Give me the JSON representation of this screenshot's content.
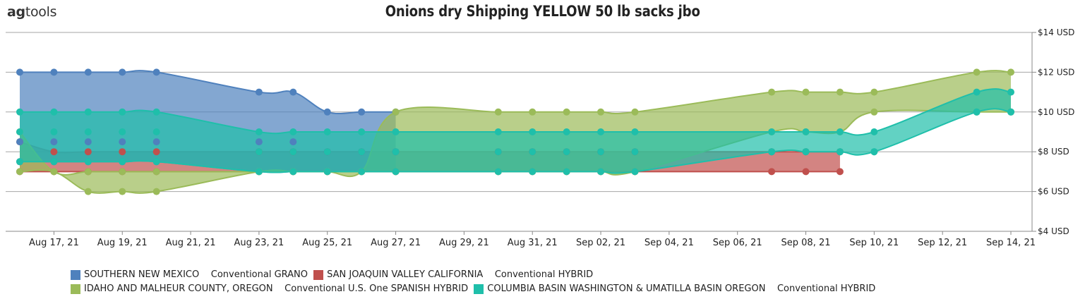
{
  "brand": {
    "bold": "ag",
    "rest": "tools"
  },
  "chart_data": {
    "type": "area",
    "title": "Onions dry Shipping YELLOW 50 lb sacks jbo",
    "xlabel": "",
    "ylabel": "",
    "x_tick_labels": [
      "Aug 17, 21",
      "Aug 19, 21",
      "Aug 21, 21",
      "Aug 23, 21",
      "Aug 25, 21",
      "Aug 27, 21",
      "Aug 29, 21",
      "Aug 31, 21",
      "Sep 02, 21",
      "Sep 04, 21",
      "Sep 06, 21",
      "Sep 08, 21",
      "Sep 10, 21",
      "Sep 12, 21",
      "Sep 14, 21"
    ],
    "y_tick_labels": [
      "$4 USD",
      "$6 USD",
      "$8 USD",
      "$10 USD",
      "$12 USD",
      "$14 USD"
    ],
    "y_ticks": [
      4,
      6,
      8,
      10,
      12,
      14
    ],
    "ylim": [
      4,
      14
    ],
    "x_range": [
      "2021-08-16",
      "2021-09-14"
    ],
    "grid": true,
    "legend_position": "bottom-left",
    "series": [
      {
        "name": "SOUTHERN NEW MEXICO",
        "subname": "Conventional GRANO",
        "color": "#4f81bd",
        "dates": [
          "2021-08-16",
          "2021-08-17",
          "2021-08-18",
          "2021-08-19",
          "2021-08-20",
          "2021-08-23",
          "2021-08-24",
          "2021-08-25",
          "2021-08-26",
          "2021-08-27"
        ],
        "high": [
          12,
          12,
          12,
          12,
          12,
          11,
          11,
          10,
          10,
          10
        ],
        "low": [
          7.5,
          7.5,
          7.5,
          7.5,
          7.5,
          7,
          7,
          7,
          7,
          7
        ],
        "mid": [
          8.5,
          8.5,
          8.5,
          8.5,
          8.5,
          8.5,
          8.5,
          8,
          8,
          8
        ]
      },
      {
        "name": "SAN JOAQUIN VALLEY CALIFORNIA",
        "subname": "Conventional HYBRID",
        "color": "#c0504d",
        "dates": [
          "2021-08-16",
          "2021-08-17",
          "2021-08-18",
          "2021-08-19",
          "2021-08-20",
          "2021-08-23",
          "2021-08-24",
          "2021-08-25",
          "2021-08-26",
          "2021-08-27",
          "2021-08-30",
          "2021-08-31",
          "2021-09-01",
          "2021-09-02",
          "2021-09-03",
          "2021-09-07",
          "2021-09-08",
          "2021-09-09"
        ],
        "high": [
          8.5,
          8,
          8,
          8,
          8,
          8,
          8,
          8,
          8,
          8,
          8,
          8,
          8,
          8,
          8,
          8,
          8,
          8
        ],
        "low": [
          7,
          7,
          7,
          7,
          7,
          7,
          7,
          7,
          7,
          7,
          7,
          7,
          7,
          7,
          7,
          7,
          7,
          7
        ]
      },
      {
        "name": "IDAHO AND MALHEUR COUNTY, OREGON",
        "subname": "Conventional U.S. One SPANISH HYBRID",
        "color": "#9bbb59",
        "dates": [
          "2021-08-16",
          "2021-08-17",
          "2021-08-18",
          "2021-08-19",
          "2021-08-20",
          "2021-08-23",
          "2021-08-24",
          "2021-08-25",
          "2021-08-26",
          "2021-08-27",
          "2021-08-30",
          "2021-08-31",
          "2021-09-01",
          "2021-09-02",
          "2021-09-03",
          "2021-09-07",
          "2021-09-08",
          "2021-09-09",
          "2021-09-10",
          "2021-09-13",
          "2021-09-14"
        ],
        "high": [
          9,
          7,
          7,
          7,
          7,
          7,
          7,
          7,
          7,
          10,
          10,
          10,
          10,
          10,
          10,
          11,
          11,
          11,
          11,
          12,
          12
        ],
        "low": [
          7,
          7,
          6,
          6,
          6,
          7,
          7,
          7,
          7,
          7,
          7,
          7,
          7,
          7,
          7,
          9,
          9,
          9,
          10,
          10,
          10
        ]
      },
      {
        "name": "COLUMBIA BASIN WASHINGTON & UMATILLA BASIN OREGON",
        "subname": "Conventional HYBRID",
        "color": "#1fbfaa",
        "dates": [
          "2021-08-16",
          "2021-08-17",
          "2021-08-18",
          "2021-08-19",
          "2021-08-20",
          "2021-08-23",
          "2021-08-24",
          "2021-08-25",
          "2021-08-26",
          "2021-08-27",
          "2021-08-30",
          "2021-08-31",
          "2021-09-01",
          "2021-09-02",
          "2021-09-03",
          "2021-09-07",
          "2021-09-08",
          "2021-09-09",
          "2021-09-10",
          "2021-09-13",
          "2021-09-14"
        ],
        "high": [
          10,
          10,
          10,
          10,
          10,
          9,
          9,
          9,
          9,
          9,
          9,
          9,
          9,
          9,
          9,
          9,
          9,
          9,
          9,
          11,
          11
        ],
        "mid": [
          9,
          9,
          9,
          9,
          9,
          8,
          8,
          8,
          8,
          8,
          8,
          8,
          8,
          8,
          8,
          8,
          8,
          8,
          8,
          10,
          10
        ],
        "low": [
          7.5,
          7.5,
          7.5,
          7.5,
          7.5,
          7,
          7,
          7,
          7,
          7,
          7,
          7,
          7,
          7,
          7,
          8,
          8,
          8,
          8,
          10,
          10
        ]
      }
    ]
  }
}
